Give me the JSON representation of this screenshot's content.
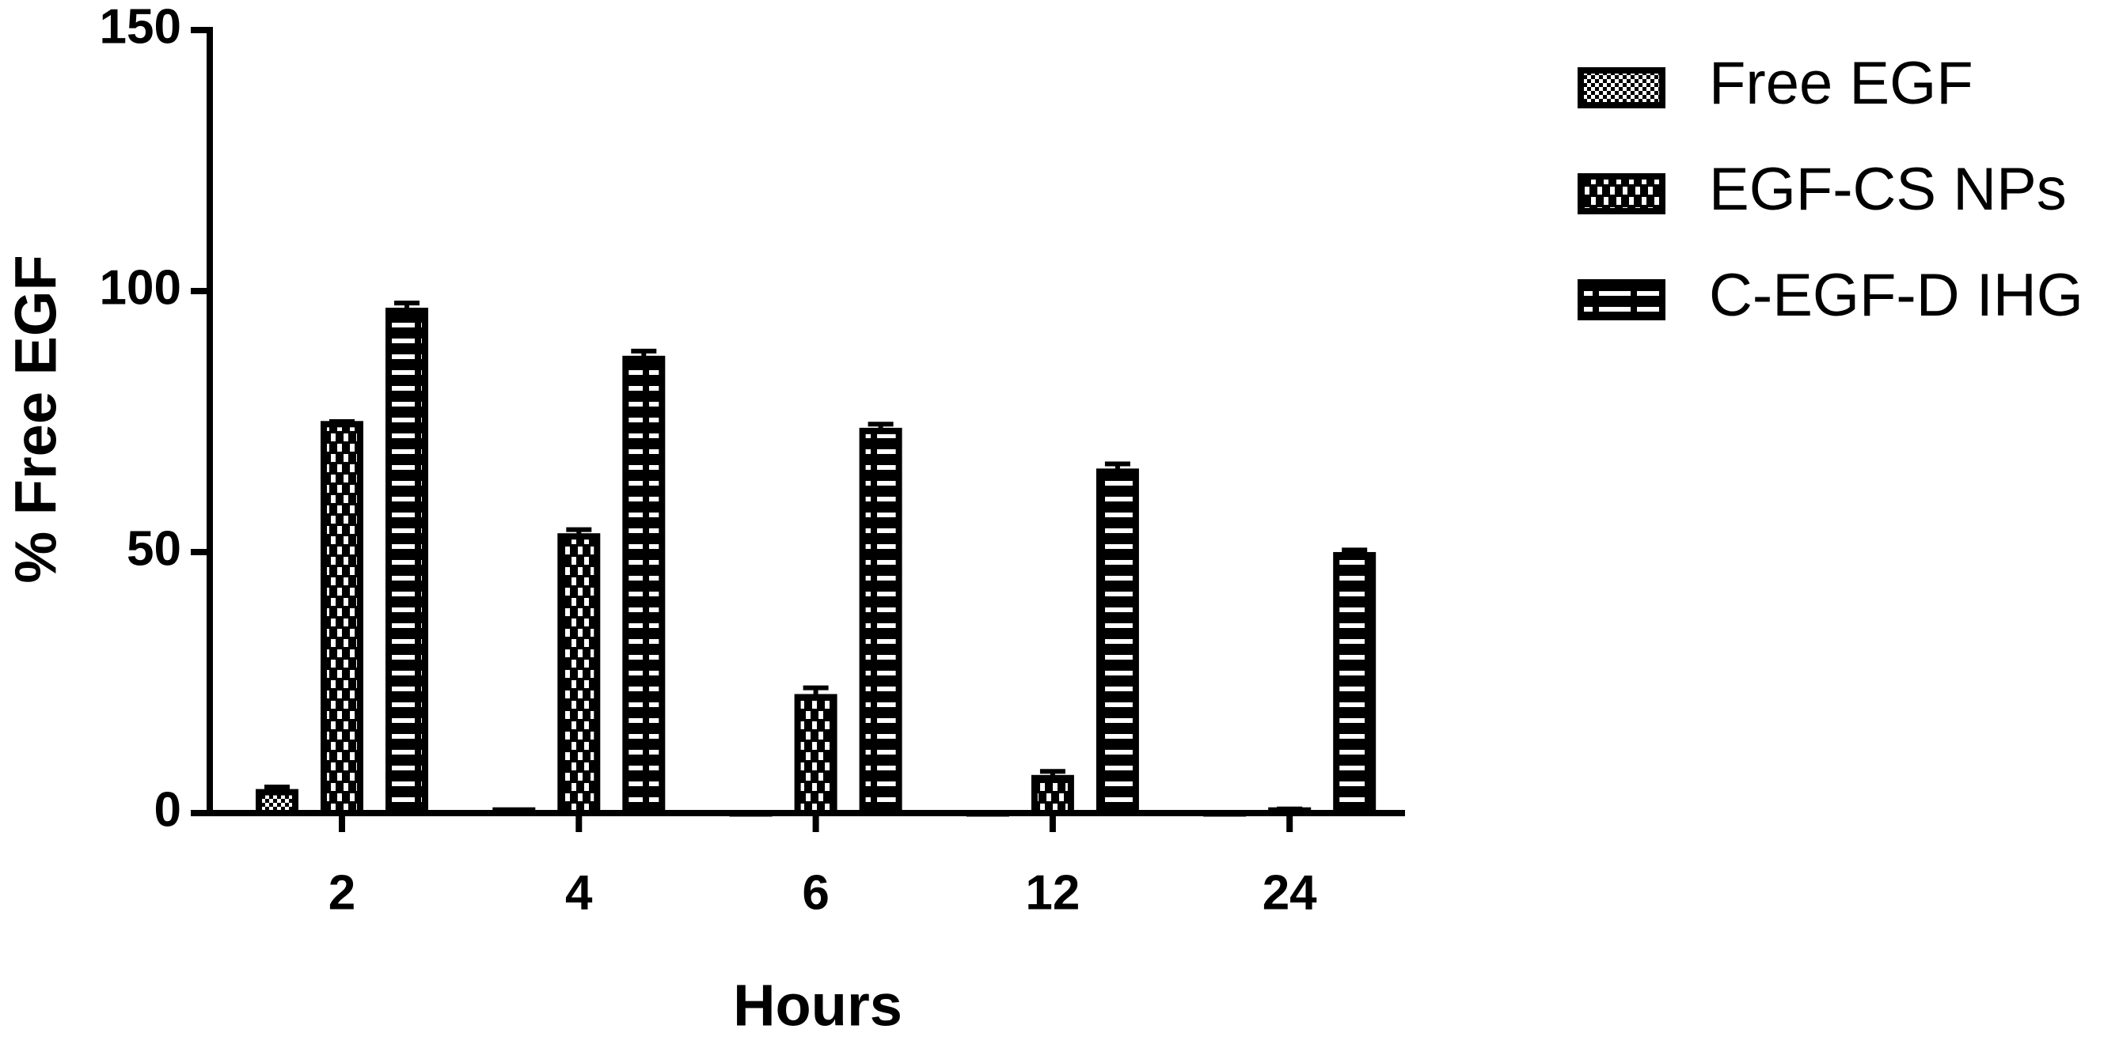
{
  "chart_data": {
    "type": "bar",
    "x_label": "Hours",
    "y_label": "% Free EGF",
    "categories": [
      "2",
      "4",
      "6",
      "12",
      "24"
    ],
    "series": [
      {
        "name": "Free EGF",
        "color": "#000000",
        "pattern": "fine-checker",
        "values": [
          4,
          0.5,
          0,
          0,
          0
        ],
        "errors": [
          1,
          0,
          0,
          0,
          0
        ]
      },
      {
        "name": "EGF-CS NPs",
        "color": "#000000",
        "pattern": "checker",
        "values": [
          74.5,
          53,
          22.2,
          6.7,
          0.5
        ],
        "errors": [
          0.5,
          1.3,
          1.8,
          1.3,
          0.3
        ]
      },
      {
        "name": "C-EGF-D IHG",
        "color": "#000000",
        "pattern": "stripes",
        "values": [
          96.2,
          87,
          73.2,
          65.4,
          49.4
        ],
        "errors": [
          1.5,
          1.5,
          1.3,
          1.5,
          1
        ]
      }
    ],
    "ylim": [
      0,
      150
    ],
    "yticks": [
      0,
      50,
      100,
      150
    ],
    "legend": "right"
  }
}
